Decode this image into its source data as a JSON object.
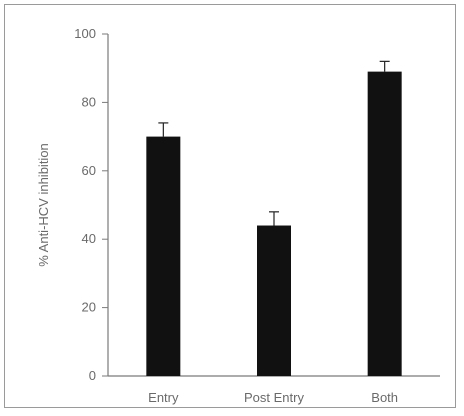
{
  "chart_data": {
    "type": "bar",
    "title": "",
    "xlabel": "",
    "ylabel": "% Anti-HCV inhibition",
    "categories": [
      "Entry",
      "Post Entry",
      "Both"
    ],
    "values": [
      70,
      44,
      89
    ],
    "errors": [
      4,
      4,
      3
    ],
    "ylim": [
      0,
      100
    ],
    "yticks": [
      0,
      20,
      40,
      60,
      80,
      100
    ],
    "grid": false,
    "legend": "none",
    "bar_color": "#111111",
    "axis_color": "#7a7a7a"
  }
}
